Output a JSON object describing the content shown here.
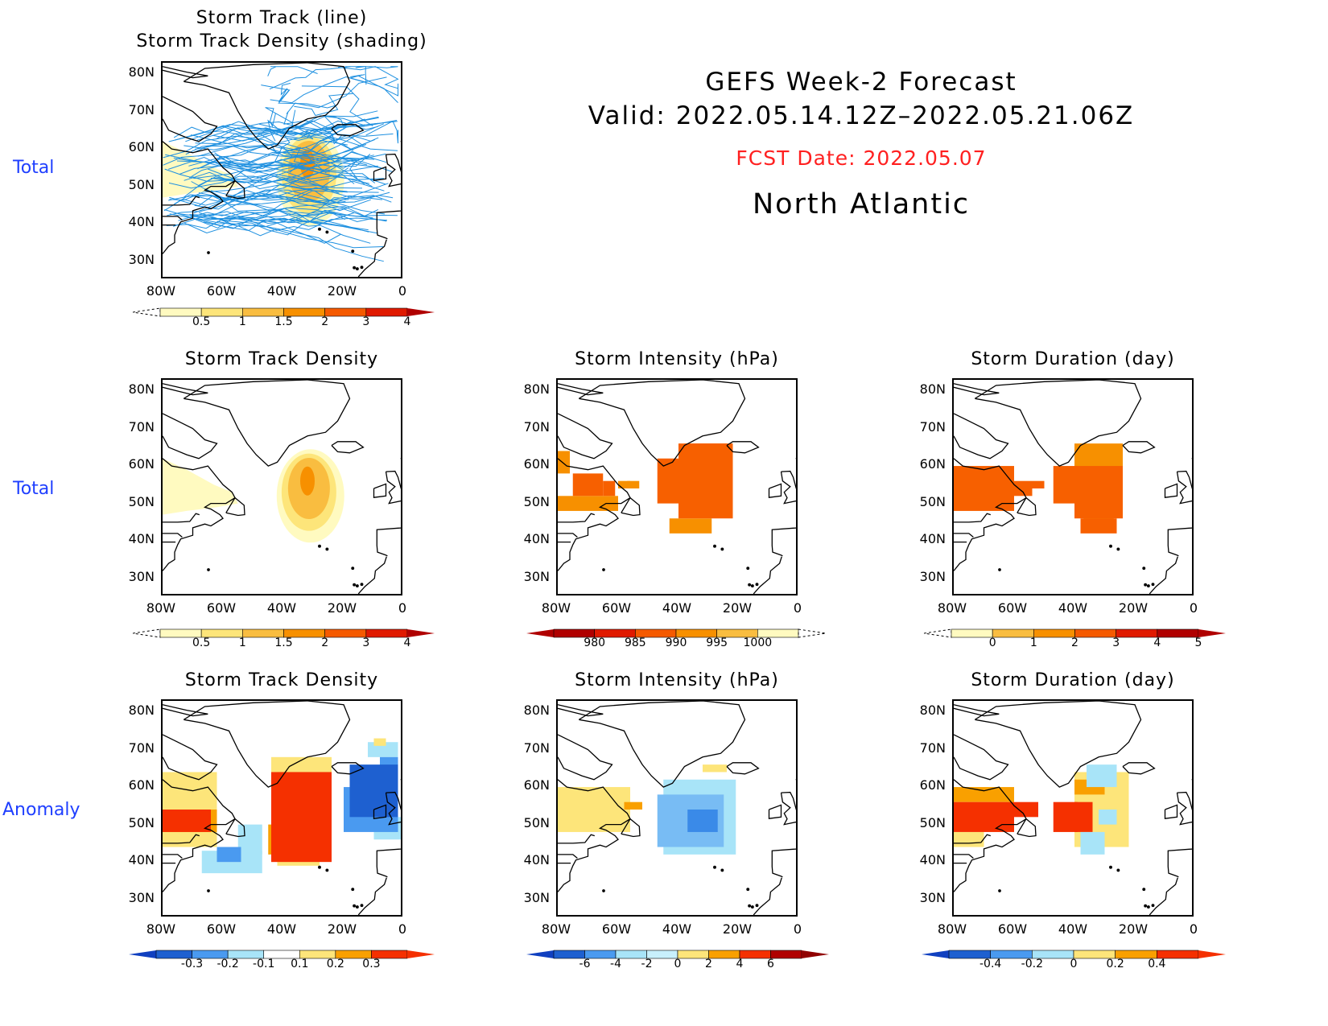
{
  "row_labels": [
    "Total",
    "Total",
    "Anomaly"
  ],
  "header": {
    "title": "GEFS Week-2 Forecast",
    "valid": "Valid: 2022.05.14.12Z–2022.05.21.06Z",
    "fcst_date": "FCST Date: 2022.05.07",
    "region": "North Atlantic",
    "fcst_color": "#ff2020"
  },
  "axes": {
    "lat_labels": [
      "80N",
      "70N",
      "60N",
      "50N",
      "40N",
      "30N"
    ],
    "lon_labels": [
      "80W",
      "60W",
      "40W",
      "20W",
      "0"
    ]
  },
  "panels": [
    {
      "id": "p1",
      "title_lines": [
        "Storm Track (line)",
        "Storm Track Density (shading)"
      ],
      "kind": "tracks",
      "colorbar": {
        "labels": [
          "0.5",
          "1",
          "1.5",
          "2",
          "3",
          "4"
        ],
        "colors": [
          "#fffac0",
          "#fde57a",
          "#f9bd40",
          "#f79000",
          "#f55a00",
          "#e01a00"
        ],
        "left_ext": "dashed",
        "right_ext": "#b00000"
      }
    },
    {
      "id": "p2",
      "title_lines": [
        "Storm Track Density"
      ],
      "kind": "density",
      "colorbar": {
        "labels": [
          "0.5",
          "1",
          "1.5",
          "2",
          "3",
          "4"
        ],
        "colors": [
          "#fffac0",
          "#fde57a",
          "#f9bd40",
          "#f79000",
          "#f55a00",
          "#e01a00"
        ],
        "left_ext": "dashed",
        "right_ext": "#b00000"
      }
    },
    {
      "id": "p3",
      "title_lines": [
        "Storm Intensity (hPa)"
      ],
      "kind": "intensity",
      "colorbar": {
        "labels": [
          "980",
          "985",
          "990",
          "995",
          "1000"
        ],
        "colors": [
          "#b00000",
          "#e01a00",
          "#f55a00",
          "#f79000",
          "#f9bd40",
          "#fffac0"
        ],
        "left_ext": "#b00000",
        "right_ext": "dashed"
      }
    },
    {
      "id": "p4",
      "title_lines": [
        "Storm Duration (day)"
      ],
      "kind": "duration",
      "colorbar": {
        "labels": [
          "0",
          "1",
          "2",
          "3",
          "4",
          "5"
        ],
        "colors": [
          "#fffac0",
          "#f9bd40",
          "#f79000",
          "#f55a00",
          "#e01a00",
          "#b00000"
        ],
        "left_ext": "dashed",
        "right_ext": "#b00000"
      }
    },
    {
      "id": "p5",
      "title_lines": [
        "Storm Track Density"
      ],
      "kind": "anom_density",
      "colorbar": {
        "labels": [
          "-0.3",
          "-0.2",
          "-0.1",
          "0.1",
          "0.2",
          "0.3"
        ],
        "colors": [
          "#1e60d0",
          "#4a9af0",
          "#a8e4f8",
          "#ffffff",
          "#fde57a",
          "#f9a000",
          "#f53000"
        ],
        "left_ext": "#1040c0",
        "right_ext": "#f53000"
      }
    },
    {
      "id": "p6",
      "title_lines": [
        "Storm Intensity (hPa)"
      ],
      "kind": "anom_intensity",
      "colorbar": {
        "labels": [
          "-6",
          "-4",
          "-2",
          "0",
          "2",
          "4",
          "6"
        ],
        "colors": [
          "#1e60d0",
          "#4a9af0",
          "#a8e4f8",
          "#c8f0fc",
          "#fde57a",
          "#f9a000",
          "#f53000",
          "#b00000"
        ],
        "left_ext": "#1040c0",
        "right_ext": "#900000"
      }
    },
    {
      "id": "p7",
      "title_lines": [
        "Storm Duration (day)"
      ],
      "kind": "anom_duration",
      "colorbar": {
        "labels": [
          "-0.4",
          "-0.2",
          "0",
          "0.2",
          "0.4"
        ],
        "colors": [
          "#1e60d0",
          "#4a9af0",
          "#a8e4f8",
          "#fde57a",
          "#f9a000",
          "#f53000"
        ],
        "left_ext": "#1040c0",
        "right_ext": "#f53000"
      }
    }
  ],
  "colors": {
    "track_line": "#1e90e0",
    "row_label": "#1f3fff"
  }
}
